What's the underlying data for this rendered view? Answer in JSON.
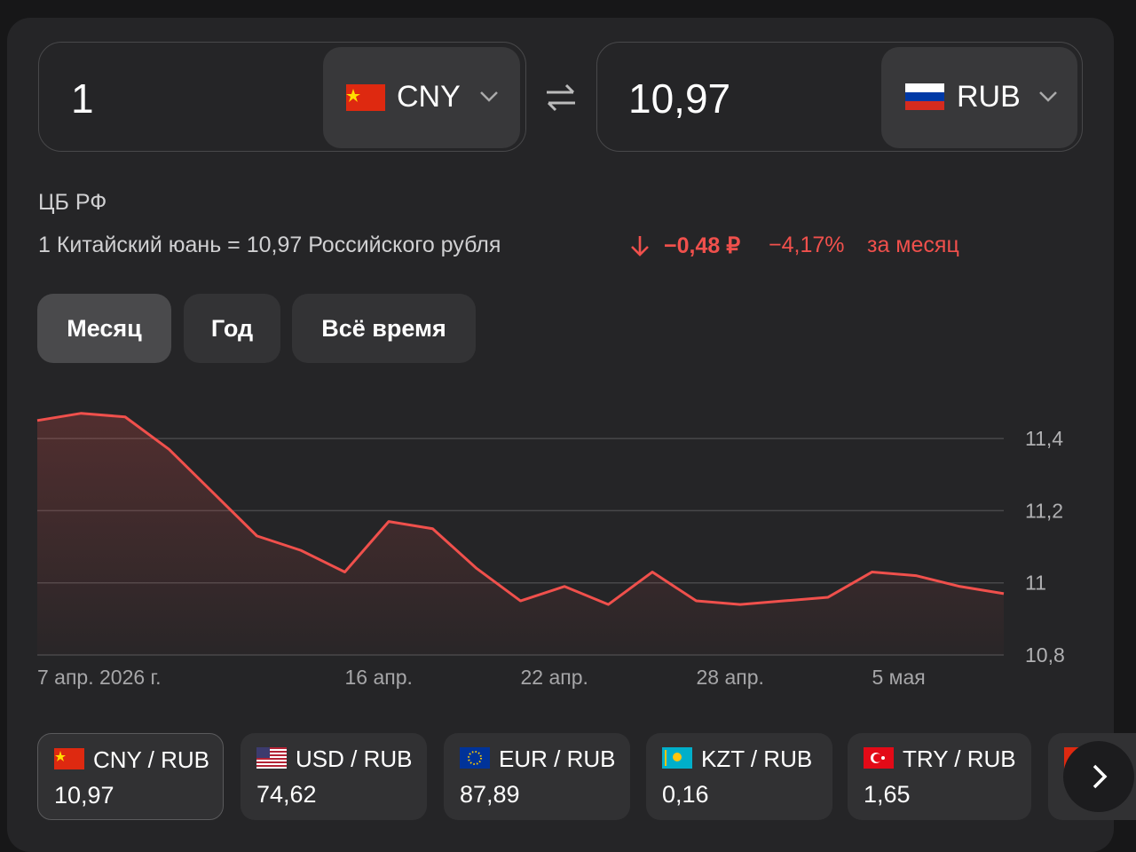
{
  "converter": {
    "from": {
      "amount": "1",
      "currency": "CNY"
    },
    "to": {
      "amount": "10,97",
      "currency": "RUB"
    }
  },
  "source": "ЦБ РФ",
  "rate_text": "1 Китайский юань = 10,97 Российского рубля",
  "change": {
    "absolute": "−0,48 ₽",
    "percent": "−4,17%",
    "period": "за месяц"
  },
  "tabs": [
    "Месяц",
    "Год",
    "Всё время"
  ],
  "chart_data": {
    "type": "line",
    "color": "#f0504c",
    "grid": true,
    "categories": [
      "7 апр. 2026 г.",
      null,
      null,
      null,
      null,
      null,
      null,
      "16 апр.",
      null,
      null,
      null,
      "22 апр.",
      null,
      null,
      null,
      "28 апр.",
      null,
      null,
      null,
      "5 мая",
      null,
      null,
      null
    ],
    "values": [
      11.45,
      11.47,
      11.46,
      11.37,
      11.25,
      11.13,
      11.09,
      11.03,
      11.17,
      11.15,
      11.04,
      10.95,
      10.99,
      10.94,
      11.03,
      10.95,
      10.94,
      10.95,
      10.96,
      11.03,
      11.02,
      10.99,
      10.97
    ],
    "ylim": [
      10.8,
      11.5
    ],
    "yticks": [
      {
        "value": 10.8,
        "label": "10,8"
      },
      11,
      {
        "value": 11.2,
        "label": "11,2"
      },
      {
        "value": 11.4,
        "label": "11,4"
      }
    ]
  },
  "pairs": [
    {
      "pair": "CNY / RUB",
      "value": "10,97"
    },
    {
      "pair": "USD / RUB",
      "value": "74,62"
    },
    {
      "pair": "EUR / RUB",
      "value": "87,89"
    },
    {
      "pair": "KZT / RUB",
      "value": "0,16"
    },
    {
      "pair": "TRY / RUB",
      "value": "1,65"
    }
  ]
}
